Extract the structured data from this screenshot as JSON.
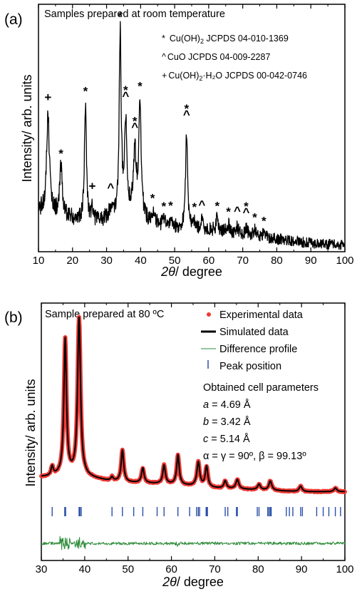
{
  "chart_data": [
    {
      "panel_label": "(a)",
      "type": "line",
      "subtitle": "Samples prepared at room temperature",
      "xlabel_italic": "2θ",
      "xlabel_rest": "/ degree",
      "ylabel": "Intensity/ arb. units",
      "xlim": [
        10,
        100
      ],
      "xticks": [
        "10",
        "20",
        "30",
        "40",
        "50",
        "60",
        "70",
        "80",
        "90",
        "100"
      ],
      "legend": [
        {
          "marker": "*",
          "formula": "Cu(OH)",
          "sub": "2",
          "code": " JCPDS 04-010-1369"
        },
        {
          "marker": "^",
          "formula": "CuO",
          "sub": "",
          "code": " JCPDS 04-009-2287"
        },
        {
          "marker": "+",
          "formula": "Cu(OH)",
          "sub": "2",
          "code": "·H₂O JCPDS 00-042-0746"
        }
      ],
      "peak_markers": [
        {
          "x": 12.8,
          "m": "+"
        },
        {
          "x": 16.6,
          "m": "*"
        },
        {
          "x": 23.8,
          "m": "*"
        },
        {
          "x": 25.8,
          "m": "+"
        },
        {
          "x": 31.2,
          "m": "^"
        },
        {
          "x": 34.0,
          "m": "*"
        },
        {
          "x": 35.6,
          "m": "^"
        },
        {
          "x": 35.6,
          "m": "*"
        },
        {
          "x": 38.3,
          "m": "^"
        },
        {
          "x": 38.3,
          "m": "*"
        },
        {
          "x": 39.8,
          "m": "*"
        },
        {
          "x": 43.5,
          "m": "*"
        },
        {
          "x": 46.8,
          "m": "*"
        },
        {
          "x": 48.8,
          "m": "*"
        },
        {
          "x": 53.5,
          "m": "^"
        },
        {
          "x": 53.5,
          "m": "*"
        },
        {
          "x": 55.8,
          "m": "*"
        },
        {
          "x": 58.0,
          "m": "^"
        },
        {
          "x": 62.5,
          "m": "*"
        },
        {
          "x": 65.8,
          "m": "*"
        },
        {
          "x": 68.4,
          "m": "^"
        },
        {
          "x": 71.0,
          "m": "^"
        },
        {
          "x": 71.0,
          "m": "*"
        },
        {
          "x": 73.5,
          "m": "*"
        },
        {
          "x": 76.2,
          "m": "*"
        }
      ],
      "baseline": [
        [
          10,
          0.18
        ],
        [
          14,
          0.17
        ],
        [
          18,
          0.16
        ],
        [
          22,
          0.13
        ],
        [
          26,
          0.13
        ],
        [
          30,
          0.14
        ],
        [
          34,
          0.15
        ],
        [
          38,
          0.17
        ],
        [
          42,
          0.13
        ],
        [
          46,
          0.11
        ],
        [
          50,
          0.1
        ],
        [
          55,
          0.09
        ],
        [
          60,
          0.09
        ],
        [
          70,
          0.07
        ],
        [
          80,
          0.05
        ],
        [
          90,
          0.03
        ],
        [
          100,
          0.02
        ]
      ],
      "peaks": [
        {
          "x": 12.8,
          "h": 0.46,
          "w": 0.5
        },
        {
          "x": 16.6,
          "h": 0.22,
          "w": 0.4
        },
        {
          "x": 23.8,
          "h": 0.55,
          "w": 0.35
        },
        {
          "x": 25.8,
          "h": 0.07,
          "w": 0.3
        },
        {
          "x": 31.2,
          "h": 0.05,
          "w": 0.5
        },
        {
          "x": 34.0,
          "h": 0.85,
          "w": 0.35
        },
        {
          "x": 35.6,
          "h": 0.43,
          "w": 0.4
        },
        {
          "x": 38.3,
          "h": 0.28,
          "w": 0.5
        },
        {
          "x": 39.8,
          "h": 0.52,
          "w": 0.4
        },
        {
          "x": 43.5,
          "h": 0.05,
          "w": 0.4
        },
        {
          "x": 46.8,
          "h": 0.03,
          "w": 0.4
        },
        {
          "x": 48.8,
          "h": 0.04,
          "w": 0.4
        },
        {
          "x": 53.5,
          "h": 0.46,
          "w": 0.35
        },
        {
          "x": 55.8,
          "h": 0.04,
          "w": 0.4
        },
        {
          "x": 58.0,
          "h": 0.04,
          "w": 0.4
        },
        {
          "x": 62.5,
          "h": 0.06,
          "w": 0.4
        },
        {
          "x": 65.8,
          "h": 0.04,
          "w": 0.4
        },
        {
          "x": 68.4,
          "h": 0.03,
          "w": 0.4
        },
        {
          "x": 71.0,
          "h": 0.03,
          "w": 0.4
        },
        {
          "x": 73.5,
          "h": 0.03,
          "w": 0.4
        },
        {
          "x": 76.2,
          "h": 0.02,
          "w": 0.4
        }
      ],
      "ylim": [
        0,
        1
      ],
      "colors": {
        "line": "#000000"
      }
    },
    {
      "panel_label": "(b)",
      "type": "line",
      "subtitle": "Sample prepared at 80 ºC",
      "xlabel_italic": "2θ",
      "xlabel_rest": "/ degree",
      "ylabel": "Intensity/ arb. units",
      "xlim": [
        30,
        100
      ],
      "xticks": [
        "30",
        "40",
        "50",
        "60",
        "70",
        "80",
        "90",
        "100"
      ],
      "legend": [
        {
          "symbol": "dot",
          "label": "Experimental data"
        },
        {
          "symbol": "thick-line",
          "label": "Simulated data"
        },
        {
          "symbol": "thin-line",
          "label": "Difference profile"
        },
        {
          "symbol": "bar",
          "label": "Peak position"
        }
      ],
      "cell_params": {
        "heading": "Obtained cell parameters",
        "a": {
          "sym": "a",
          "val": " = 4.69 Å"
        },
        "b": {
          "sym": "b",
          "val": " = 3.42 Å"
        },
        "c": {
          "sym": "c",
          "val": " = 5.14 Å"
        },
        "angles": "α = γ = 90º, β = 99.13º"
      },
      "baseline": [
        [
          30,
          0.12
        ],
        [
          32,
          0.12
        ],
        [
          35,
          0.13
        ],
        [
          40,
          0.12
        ],
        [
          45,
          0.1
        ],
        [
          50,
          0.09
        ],
        [
          60,
          0.08
        ],
        [
          70,
          0.06
        ],
        [
          80,
          0.05
        ],
        [
          90,
          0.04
        ],
        [
          100,
          0.04
        ]
      ],
      "peaks": [
        {
          "x": 32.5,
          "h": 0.05,
          "w": 0.3
        },
        {
          "x": 35.5,
          "h": 0.73,
          "w": 0.35
        },
        {
          "x": 38.7,
          "h": 0.85,
          "w": 0.4
        },
        {
          "x": 46.3,
          "h": 0.02,
          "w": 0.3
        },
        {
          "x": 48.7,
          "h": 0.17,
          "w": 0.35
        },
        {
          "x": 53.4,
          "h": 0.08,
          "w": 0.35
        },
        {
          "x": 58.3,
          "h": 0.1,
          "w": 0.35
        },
        {
          "x": 61.5,
          "h": 0.16,
          "w": 0.35
        },
        {
          "x": 66.2,
          "h": 0.13,
          "w": 0.4
        },
        {
          "x": 68.1,
          "h": 0.11,
          "w": 0.35
        },
        {
          "x": 72.4,
          "h": 0.04,
          "w": 0.35
        },
        {
          "x": 75.2,
          "h": 0.05,
          "w": 0.4
        },
        {
          "x": 80.2,
          "h": 0.03,
          "w": 0.4
        },
        {
          "x": 82.8,
          "h": 0.05,
          "w": 0.4
        },
        {
          "x": 89.8,
          "h": 0.03,
          "w": 0.4
        },
        {
          "x": 97.8,
          "h": 0.02,
          "w": 0.4
        }
      ],
      "peak_positions": [
        32.5,
        35.4,
        35.6,
        38.7,
        38.9,
        39.2,
        46.3,
        48.7,
        51.3,
        53.4,
        56.7,
        58.3,
        61.5,
        64.2,
        65.8,
        66.2,
        66.5,
        68.0,
        68.1,
        68.3,
        72.4,
        73.0,
        75.0,
        75.2,
        79.8,
        80.2,
        82.2,
        82.5,
        82.8,
        83.0,
        86.5,
        87.2,
        88.0,
        89.8,
        90.2,
        93.5,
        95.0,
        96.3,
        97.8,
        99.0
      ],
      "ylim": [
        0,
        1
      ],
      "colors": {
        "exp": "#ee3a36",
        "sim": "#000000",
        "diff": "#2e8b3a",
        "bar": "#2b4fa8"
      }
    }
  ]
}
